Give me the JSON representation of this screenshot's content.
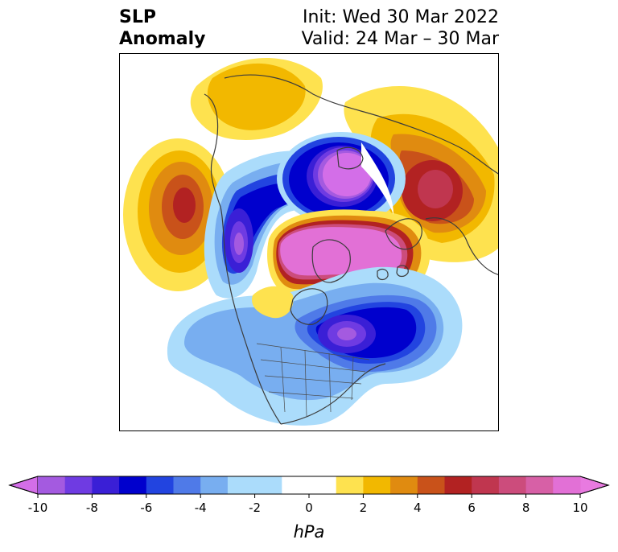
{
  "title": {
    "left_line1": "SLP",
    "left_line2": "Anomaly",
    "right_line1": "Init: Wed 30 Mar 2022",
    "right_line2": "Valid: 24 Mar – 30 Mar"
  },
  "map": {
    "projection": "north-polar-stereographic",
    "field": "sea-level-pressure-anomaly",
    "features": [
      {
        "name": "north-pacific-high",
        "sign": "positive",
        "peak_hpa": 7
      },
      {
        "name": "alaska-gulf-low",
        "sign": "negative",
        "peak_hpa": -8
      },
      {
        "name": "arctic-siberia-high",
        "sign": "positive",
        "peak_hpa": 10
      },
      {
        "name": "north-atlantic-low",
        "sign": "negative",
        "peak_hpa": -8
      },
      {
        "name": "western-russia-high",
        "sign": "positive",
        "peak_hpa": 7
      },
      {
        "name": "canadian-archipelago-low",
        "sign": "negative",
        "peak_hpa": -10
      },
      {
        "name": "europe-high",
        "sign": "positive",
        "peak_hpa": 3
      }
    ]
  },
  "colorbar": {
    "unit_label": "hPa",
    "ticks": [
      "-10",
      "-8",
      "-6",
      "-4",
      "-2",
      "0",
      "2",
      "4",
      "6",
      "8",
      "10"
    ],
    "bins": [
      {
        "from": -10,
        "to": -9,
        "color": "#a45ae0"
      },
      {
        "from": -9,
        "to": -8,
        "color": "#6f3be2"
      },
      {
        "from": -8,
        "to": -7,
        "color": "#3a1fd6"
      },
      {
        "from": -7,
        "to": -6,
        "color": "#0000cd"
      },
      {
        "from": -6,
        "to": -5,
        "color": "#2244e0"
      },
      {
        "from": -5,
        "to": -4,
        "color": "#4f7ae8"
      },
      {
        "from": -4,
        "to": -3,
        "color": "#78aef0"
      },
      {
        "from": -3,
        "to": -1,
        "color": "#abdcfb"
      },
      {
        "from": -1,
        "to": 1,
        "color": "#ffffff"
      },
      {
        "from": 1,
        "to": 2,
        "color": "#fee24f"
      },
      {
        "from": 2,
        "to": 3,
        "color": "#f2b800"
      },
      {
        "from": 3,
        "to": 4,
        "color": "#e08b10"
      },
      {
        "from": 4,
        "to": 5,
        "color": "#c9521a"
      },
      {
        "from": 5,
        "to": 6,
        "color": "#b22222"
      },
      {
        "from": 6,
        "to": 7,
        "color": "#c0364f"
      },
      {
        "from": 7,
        "to": 8,
        "color": "#cc4c7c"
      },
      {
        "from": 8,
        "to": 9,
        "color": "#d760a6"
      },
      {
        "from": 9,
        "to": 10,
        "color": "#e270d6"
      }
    ],
    "under_color": "#d36ee8",
    "over_color": "#e87ae0",
    "extend": "both"
  }
}
